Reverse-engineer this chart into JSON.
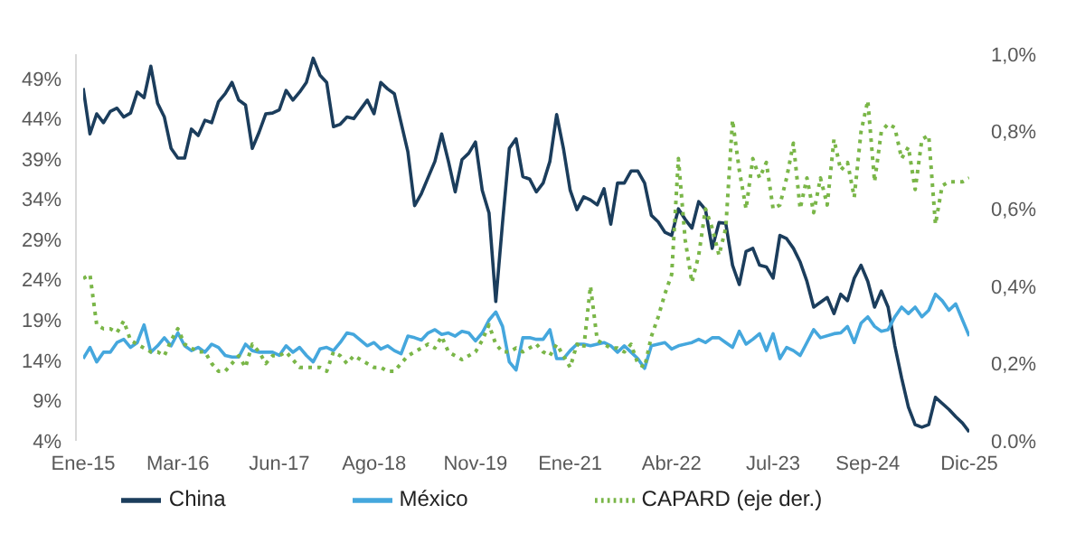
{
  "chart_data": {
    "type": "line",
    "xlim": [
      "2015-01",
      "2025-12"
    ],
    "xticks": [
      {
        "value": "2015-01",
        "label": "Ene-15"
      },
      {
        "value": "2016-03",
        "label": "Mar-16"
      },
      {
        "value": "2017-06",
        "label": "Jun-17"
      },
      {
        "value": "2018-08",
        "label": "Ago-18"
      },
      {
        "value": "2019-11",
        "label": "Nov-19"
      },
      {
        "value": "2021-01",
        "label": "Ene-21"
      },
      {
        "value": "2022-04",
        "label": "Abr-22"
      },
      {
        "value": "2023-07",
        "label": "Jul-23"
      },
      {
        "value": "2024-09",
        "label": "Sep-24"
      },
      {
        "value": "2025-12",
        "label": "Dic-25"
      }
    ],
    "ylim": [
      4,
      52
    ],
    "yticks": [
      {
        "value": 4,
        "label": "4%"
      },
      {
        "value": 9,
        "label": "9%"
      },
      {
        "value": 14,
        "label": "14%"
      },
      {
        "value": 19,
        "label": "19%"
      },
      {
        "value": 24,
        "label": "24%"
      },
      {
        "value": 29,
        "label": "29%"
      },
      {
        "value": 34,
        "label": "34%"
      },
      {
        "value": 39,
        "label": "39%"
      },
      {
        "value": 44,
        "label": "44%"
      },
      {
        "value": 49,
        "label": "49%"
      }
    ],
    "y2lim": [
      0,
      1
    ],
    "y2ticks": [
      {
        "value": 0,
        "label": "0.0%"
      },
      {
        "value": 0.2,
        "label": "0,2%"
      },
      {
        "value": 0.4,
        "label": "0,4%"
      },
      {
        "value": 0.6,
        "label": "0,6%"
      },
      {
        "value": 0.8,
        "label": "0,8%"
      },
      {
        "value": 1,
        "label": "1,0%"
      }
    ],
    "grid": false,
    "legend": "bottom",
    "marker": "none",
    "line_style": "solid",
    "series": [
      {
        "name": "China",
        "color": "#1b3d5c",
        "x": [
          "2015-01",
          "2015-02",
          "2015-03",
          "2015-04",
          "2015-05",
          "2015-06",
          "2015-07",
          "2015-08",
          "2015-09",
          "2015-10",
          "2015-11",
          "2015-12",
          "2016-01",
          "2016-02",
          "2016-03",
          "2016-04",
          "2016-05",
          "2016-06",
          "2016-07",
          "2016-08",
          "2016-09",
          "2016-10",
          "2016-11",
          "2016-12",
          "2017-01",
          "2017-02",
          "2017-03",
          "2017-04",
          "2017-05",
          "2017-06",
          "2017-07",
          "2017-08",
          "2017-09",
          "2017-10",
          "2017-11",
          "2017-12",
          "2018-01",
          "2018-02",
          "2018-03",
          "2018-04",
          "2018-05",
          "2018-07",
          "2018-08",
          "2018-09",
          "2018-10",
          "2018-11",
          "2018-12",
          "2019-01",
          "2019-02",
          "2019-03",
          "2019-04",
          "2019-05",
          "2019-06",
          "2019-07",
          "2019-08",
          "2019-09",
          "2019-10",
          "2019-11",
          "2019-12",
          "2020-01",
          "2020-02",
          "2020-03",
          "2020-04",
          "2020-05",
          "2020-06",
          "2020-07",
          "2020-08",
          "2020-09",
          "2020-10",
          "2020-11",
          "2020-12",
          "2021-01",
          "2021-02",
          "2021-03",
          "2021-04",
          "2021-05",
          "2021-06",
          "2021-07",
          "2021-08",
          "2021-09",
          "2021-10",
          "2021-11",
          "2021-12",
          "2022-01",
          "2022-02",
          "2022-03",
          "2022-04",
          "2022-05",
          "2022-06",
          "2022-07",
          "2022-08",
          "2022-09",
          "2022-10",
          "2022-11",
          "2022-12",
          "2023-01",
          "2023-02",
          "2023-03",
          "2023-04",
          "2023-05",
          "2023-06",
          "2023-07",
          "2023-08",
          "2023-09",
          "2023-10",
          "2023-11",
          "2023-12",
          "2024-01",
          "2024-03",
          "2024-04",
          "2024-05",
          "2024-06",
          "2024-07",
          "2024-08",
          "2024-09",
          "2024-10",
          "2024-11",
          "2024-12",
          "2025-01",
          "2025-02",
          "2025-03",
          "2025-04",
          "2025-05",
          "2025-06",
          "2025-07",
          "2025-09",
          "2025-10",
          "2025-11",
          "2025-12"
        ],
        "values": [
          47.8,
          42.1,
          44.6,
          43.5,
          44.9,
          45.3,
          44.2,
          44.7,
          47.3,
          46.6,
          50.5,
          45.9,
          44.2,
          40.3,
          39.1,
          39.1,
          42.7,
          41.9,
          43.8,
          43.5,
          46.1,
          47.1,
          48.5,
          46.3,
          45.7,
          40.3,
          42.3,
          44.6,
          44.7,
          45.1,
          47.5,
          46.3,
          47.3,
          48.5,
          51.5,
          49.4,
          48.5,
          43.0,
          43.3,
          44.2,
          44.0,
          46.3,
          44.6,
          48.5,
          47.7,
          47.1,
          43.5,
          39.9,
          33.2,
          34.7,
          36.7,
          38.7,
          42.1,
          38.7,
          34.9,
          38.9,
          39.7,
          41.1,
          35.1,
          32.3,
          21.3,
          31.1,
          40.3,
          41.5,
          36.8,
          36.5,
          34.9,
          36.0,
          38.7,
          44.5,
          40.3,
          35.1,
          32.7,
          34.3,
          33.9,
          33.3,
          35.3,
          30.9,
          36.0,
          36.0,
          37.5,
          37.5,
          36.0,
          32.0,
          31.2,
          29.9,
          29.5,
          32.8,
          31.5,
          30.4,
          33.7,
          32.7,
          27.9,
          31.1,
          31.0,
          25.8,
          23.4,
          27.5,
          27.9,
          25.8,
          25.6,
          24.2,
          29.5,
          29.1,
          27.9,
          26.2,
          23.8,
          20.6,
          21.8,
          19.8,
          22.2,
          21.4,
          24.2,
          25.8,
          23.8,
          20.6,
          22.6,
          20.6,
          15.8,
          11.8,
          8.2,
          6.0,
          5.7,
          6.0,
          9.4,
          7.9,
          7.0,
          6.2,
          5.1
        ]
      },
      {
        "name": "México",
        "color": "#45a7dd",
        "x": [
          "2015-01",
          "2015-02",
          "2015-03",
          "2015-04",
          "2015-05",
          "2015-06",
          "2015-07",
          "2015-08",
          "2015-09",
          "2015-10",
          "2015-11",
          "2015-12",
          "2016-01",
          "2016-02",
          "2016-03",
          "2016-04",
          "2016-05",
          "2016-06",
          "2016-07",
          "2016-08",
          "2016-09",
          "2016-10",
          "2016-11",
          "2016-12",
          "2017-01",
          "2017-02",
          "2017-03",
          "2017-04",
          "2017-05",
          "2017-06",
          "2017-07",
          "2017-08",
          "2017-09",
          "2017-10",
          "2017-11",
          "2017-12",
          "2018-01",
          "2018-02",
          "2018-03",
          "2018-04",
          "2018-05",
          "2018-07",
          "2018-08",
          "2018-09",
          "2018-10",
          "2018-11",
          "2018-12",
          "2019-01",
          "2019-02",
          "2019-03",
          "2019-04",
          "2019-05",
          "2019-06",
          "2019-07",
          "2019-08",
          "2019-09",
          "2019-10",
          "2019-11",
          "2019-12",
          "2020-01",
          "2020-02",
          "2020-03",
          "2020-04",
          "2020-05",
          "2020-06",
          "2020-07",
          "2020-08",
          "2020-09",
          "2020-10",
          "2020-11",
          "2020-12",
          "2021-01",
          "2021-02",
          "2021-03",
          "2021-04",
          "2021-05",
          "2021-06",
          "2021-07",
          "2021-08",
          "2021-09",
          "2021-10",
          "2021-11",
          "2021-12",
          "2022-01",
          "2022-02",
          "2022-03",
          "2022-04",
          "2022-05",
          "2022-07",
          "2022-08",
          "2022-09",
          "2022-10",
          "2022-11",
          "2022-12",
          "2023-01",
          "2023-02",
          "2023-03",
          "2023-04",
          "2023-05",
          "2023-06",
          "2023-07",
          "2023-08",
          "2023-09",
          "2023-10",
          "2023-11",
          "2023-12",
          "2024-01",
          "2024-02",
          "2024-04",
          "2024-05",
          "2024-06",
          "2024-07",
          "2024-08",
          "2024-09",
          "2024-10",
          "2024-11",
          "2024-12",
          "2025-01",
          "2025-02",
          "2025-03",
          "2025-04",
          "2025-05",
          "2025-06",
          "2025-07",
          "2025-08",
          "2025-09",
          "2025-10",
          "2025-11",
          "2025-12"
        ],
        "values": [
          14.2,
          15.6,
          13.8,
          15.0,
          15.0,
          16.2,
          16.6,
          15.6,
          16.2,
          18.4,
          15.0,
          15.8,
          16.8,
          15.8,
          17.4,
          15.8,
          15.2,
          15.6,
          15.0,
          16.0,
          15.6,
          14.6,
          14.4,
          14.4,
          16.0,
          15.2,
          15.0,
          15.0,
          15.0,
          14.6,
          15.8,
          15.0,
          15.6,
          14.6,
          13.8,
          15.4,
          15.6,
          15.2,
          16.2,
          17.4,
          17.2,
          15.8,
          16.2,
          15.4,
          15.8,
          15.2,
          14.8,
          17.0,
          16.8,
          16.5,
          17.4,
          17.8,
          17.2,
          17.4,
          17.0,
          17.6,
          17.4,
          16.4,
          17.4,
          19.0,
          20.0,
          18.2,
          13.8,
          12.8,
          16.8,
          16.8,
          16.6,
          16.6,
          17.8,
          14.2,
          14.2,
          15.2,
          16.0,
          16.0,
          15.8,
          16.0,
          16.2,
          15.8,
          15.0,
          15.8,
          15.0,
          14.2,
          13.0,
          15.8,
          16.0,
          16.2,
          15.4,
          15.8,
          16.2,
          16.6,
          16.2,
          16.8,
          16.8,
          16.2,
          15.6,
          17.6,
          16.0,
          16.6,
          17.3,
          15.2,
          17.3,
          14.2,
          15.6,
          15.2,
          14.6,
          16.2,
          17.8,
          16.8,
          17.3,
          17.4,
          18.2,
          16.2,
          18.6,
          19.4,
          18.2,
          17.6,
          17.8,
          19.4,
          20.6,
          19.8,
          20.6,
          19.4,
          20.2,
          22.2,
          21.4,
          20.2,
          21.0,
          19.0,
          17.0
        ]
      },
      {
        "name": "CAPARD (eje der.)",
        "color": "#7ab648",
        "axis": "y2",
        "line_style": "dotted",
        "x": [
          "2015-01",
          "2015-02",
          "2015-03",
          "2015-04",
          "2015-05",
          "2015-06",
          "2015-07",
          "2015-08",
          "2015-09",
          "2015-10",
          "2015-11",
          "2015-12",
          "2016-01",
          "2016-02",
          "2016-03",
          "2016-04",
          "2016-05",
          "2016-06",
          "2016-07",
          "2016-08",
          "2016-09",
          "2016-10",
          "2016-11",
          "2016-12",
          "2017-01",
          "2017-02",
          "2017-03",
          "2017-04",
          "2017-05",
          "2017-06",
          "2017-07",
          "2017-08",
          "2017-09",
          "2017-10",
          "2017-11",
          "2017-12",
          "2018-01",
          "2018-02",
          "2018-03",
          "2018-04",
          "2018-05",
          "2018-07",
          "2018-08",
          "2018-09",
          "2018-10",
          "2018-11",
          "2018-12",
          "2019-01",
          "2019-02",
          "2019-03",
          "2019-04",
          "2019-05",
          "2019-06",
          "2019-07",
          "2019-08",
          "2019-09",
          "2019-10",
          "2019-11",
          "2019-12",
          "2020-01",
          "2020-02",
          "2020-03",
          "2020-04",
          "2020-05",
          "2020-06",
          "2020-07",
          "2020-08",
          "2020-09",
          "2020-10",
          "2020-11",
          "2021-01",
          "2021-02",
          "2021-03",
          "2021-04",
          "2021-05",
          "2021-06",
          "2021-07",
          "2021-08",
          "2021-09",
          "2021-10",
          "2021-11",
          "2021-12",
          "2022-01",
          "2022-02",
          "2022-03",
          "2022-04",
          "2022-05",
          "2022-06",
          "2022-07",
          "2022-08",
          "2022-09",
          "2022-10",
          "2022-11",
          "2022-12",
          "2023-01",
          "2023-02",
          "2023-03",
          "2023-04",
          "2023-05",
          "2023-06",
          "2023-07",
          "2023-08",
          "2023-09",
          "2023-10",
          "2023-11",
          "2023-12",
          "2024-01",
          "2024-02",
          "2024-03",
          "2024-04",
          "2024-05",
          "2024-06",
          "2024-07",
          "2024-08",
          "2024-09",
          "2024-10",
          "2024-11",
          "2024-12",
          "2025-01",
          "2025-02",
          "2025-03",
          "2025-04",
          "2025-05",
          "2025-06",
          "2025-07",
          "2025-08",
          "2025-09",
          "2025-10",
          "2025-11",
          "2025-12"
        ],
        "values": [
          0.42,
          0.43,
          0.3,
          0.29,
          0.29,
          0.28,
          0.31,
          0.26,
          0.25,
          0.24,
          0.23,
          0.23,
          0.22,
          0.26,
          0.29,
          0.25,
          0.24,
          0.23,
          0.23,
          0.2,
          0.18,
          0.18,
          0.2,
          0.22,
          0.19,
          0.25,
          0.23,
          0.2,
          0.22,
          0.22,
          0.23,
          0.21,
          0.19,
          0.19,
          0.19,
          0.19,
          0.18,
          0.23,
          0.22,
          0.2,
          0.22,
          0.2,
          0.19,
          0.19,
          0.18,
          0.18,
          0.2,
          0.22,
          0.23,
          0.24,
          0.25,
          0.24,
          0.27,
          0.23,
          0.22,
          0.21,
          0.22,
          0.23,
          0.26,
          0.3,
          0.25,
          0.23,
          0.23,
          0.24,
          0.23,
          0.24,
          0.25,
          0.23,
          0.22,
          0.25,
          0.19,
          0.25,
          0.24,
          0.4,
          0.26,
          0.25,
          0.24,
          0.24,
          0.23,
          0.25,
          0.2,
          0.19,
          0.27,
          0.32,
          0.38,
          0.43,
          0.73,
          0.52,
          0.41,
          0.48,
          0.6,
          0.55,
          0.48,
          0.55,
          0.83,
          0.7,
          0.6,
          0.73,
          0.68,
          0.72,
          0.6,
          0.61,
          0.68,
          0.77,
          0.6,
          0.68,
          0.59,
          0.68,
          0.61,
          0.78,
          0.7,
          0.72,
          0.63,
          0.8,
          0.88,
          0.67,
          0.8,
          0.82,
          0.81,
          0.73,
          0.76,
          0.65,
          0.78,
          0.79,
          0.56,
          0.66,
          0.67,
          0.67,
          0.67,
          0.68
        ]
      }
    ]
  }
}
